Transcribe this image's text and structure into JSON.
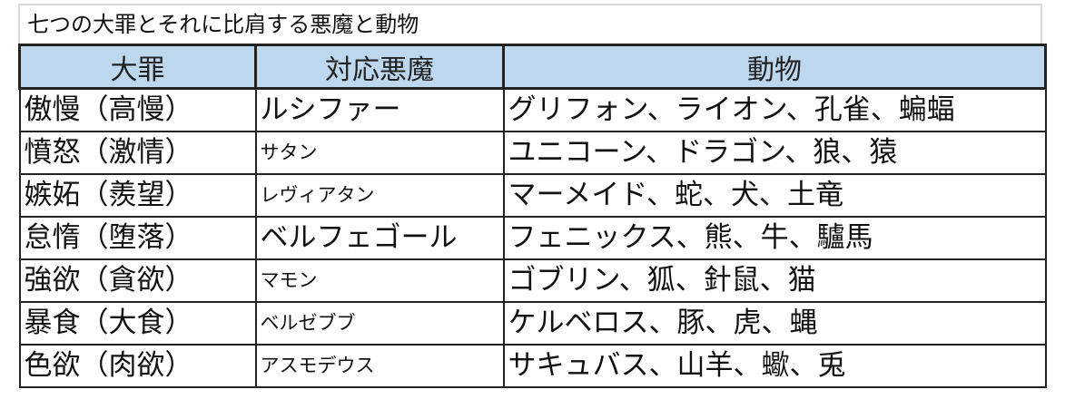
{
  "title": "七つの大罪とそれに比肩する悪魔と動物",
  "header_color": "#bdd7ee",
  "columns": [
    "大罪",
    "対応悪魔",
    "動物"
  ],
  "rows": [
    {
      "sin": "傲慢（高慢）",
      "demon": "ルシファー",
      "animals": "グリフォン、ライオン、孔雀、蝙蝠"
    },
    {
      "sin": "憤怒（激情）",
      "demon": "サタン",
      "animals": "ユニコーン、ドラゴン、狼、猿"
    },
    {
      "sin": "嫉妬（羨望）",
      "demon": "レヴィアタン",
      "animals": "マーメイド、蛇、犬、土竜"
    },
    {
      "sin": "怠惰（堕落）",
      "demon": "ベルフェゴール",
      "animals": "フェニックス、熊、牛、驢馬"
    },
    {
      "sin": "強欲（貪欲）",
      "demon": "マモン",
      "animals": "ゴブリン、狐、針鼠、猫"
    },
    {
      "sin": "暴食（大食）",
      "demon": "ベルゼブブ",
      "animals": "ケルベロス、豚、虎、蝿"
    },
    {
      "sin": "色欲（肉欲）",
      "demon": "アスモデウス",
      "animals": "サキュバス、山羊、蠍、兎"
    }
  ]
}
